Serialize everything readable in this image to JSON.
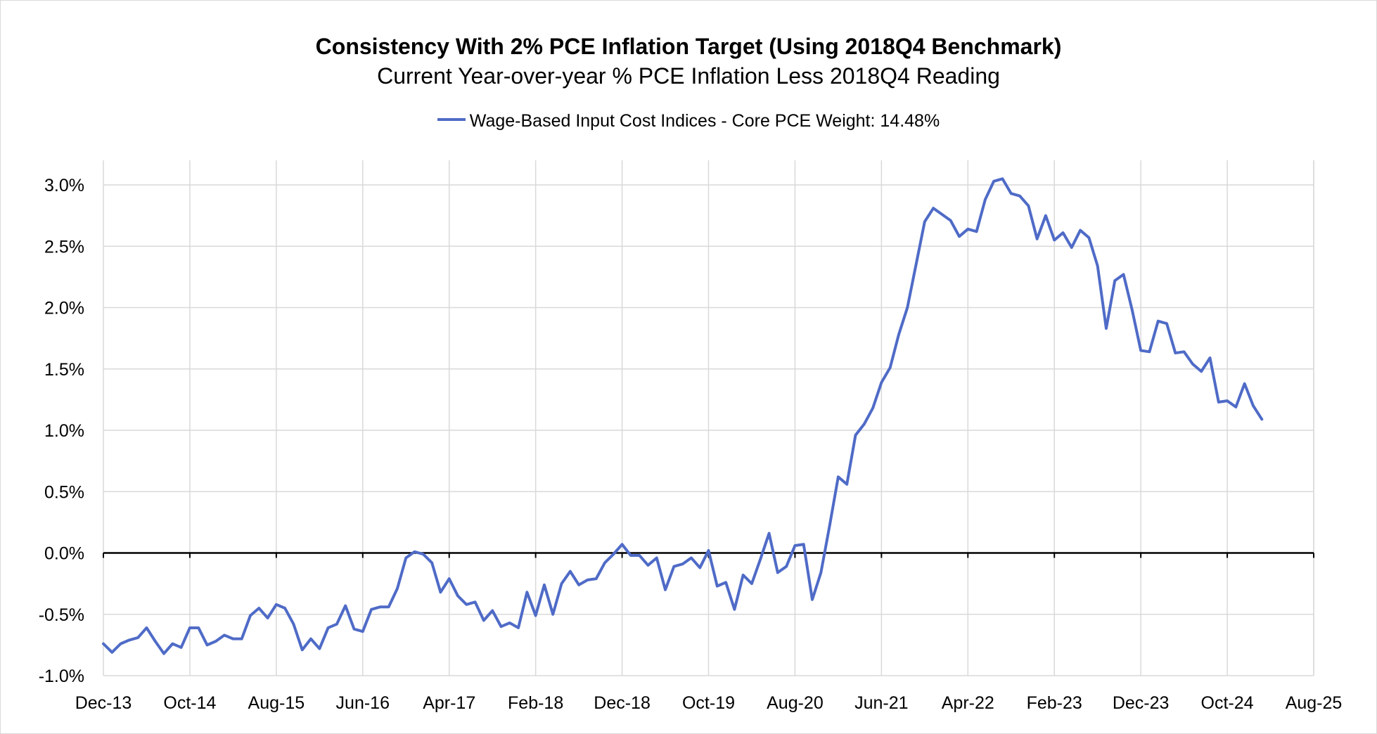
{
  "colors": {
    "series": "#4F6BC7",
    "grid": "#d9d9d9",
    "zero_line": "#000000"
  },
  "chart_data": {
    "type": "line",
    "title": "Consistency With 2% PCE Inflation Target (Using 2018Q4 Benchmark)",
    "subtitle": "Current Year-over-year % PCE Inflation Less 2018Q4 Reading",
    "xlabel": "",
    "ylabel": "",
    "ylim": [
      -1.0,
      3.0
    ],
    "yticks": [
      -1.0,
      -0.5,
      0.0,
      0.5,
      1.0,
      1.5,
      2.0,
      2.5,
      3.0
    ],
    "ytick_labels": [
      "-1.0%",
      "-0.5%",
      "0.0%",
      "0.5%",
      "1.0%",
      "1.5%",
      "2.0%",
      "2.5%",
      "3.0%"
    ],
    "xtick_labels": [
      "Dec-13",
      "Oct-14",
      "Aug-15",
      "Jun-16",
      "Apr-17",
      "Feb-18",
      "Dec-18",
      "Oct-19",
      "Aug-20",
      "Jun-21",
      "Apr-22",
      "Feb-23",
      "Dec-23",
      "Oct-24",
      "Aug-25"
    ],
    "x_months_per_tick": 10,
    "x_range_months": [
      0,
      140
    ],
    "grid": true,
    "legend_position": "top-center",
    "series": [
      {
        "name": "Wage-Based Input Cost Indices - Core PCE Weight: 14.48%",
        "values": [
          -0.74,
          -0.81,
          -0.74,
          -0.71,
          -0.69,
          -0.61,
          -0.72,
          -0.82,
          -0.74,
          -0.77,
          -0.61,
          -0.61,
          -0.75,
          -0.72,
          -0.67,
          -0.7,
          -0.7,
          -0.51,
          -0.45,
          -0.53,
          -0.42,
          -0.45,
          -0.58,
          -0.79,
          -0.7,
          -0.78,
          -0.61,
          -0.58,
          -0.43,
          -0.62,
          -0.64,
          -0.46,
          -0.44,
          -0.44,
          -0.29,
          -0.04,
          0.01,
          -0.01,
          -0.08,
          -0.32,
          -0.21,
          -0.35,
          -0.42,
          -0.4,
          -0.55,
          -0.47,
          -0.6,
          -0.57,
          -0.61,
          -0.32,
          -0.51,
          -0.26,
          -0.5,
          -0.25,
          -0.15,
          -0.26,
          -0.22,
          -0.21,
          -0.08,
          -0.01,
          0.07,
          -0.02,
          -0.02,
          -0.1,
          -0.04,
          -0.3,
          -0.11,
          -0.09,
          -0.04,
          -0.12,
          0.02,
          -0.27,
          -0.24,
          -0.46,
          -0.18,
          -0.25,
          -0.05,
          0.16,
          -0.16,
          -0.11,
          0.06,
          0.07,
          -0.38,
          -0.16,
          0.22,
          0.62,
          0.56,
          0.96,
          1.05,
          1.18,
          1.39,
          1.51,
          1.78,
          2.0,
          2.35,
          2.7,
          2.81,
          2.76,
          2.71,
          2.58,
          2.64,
          2.62,
          2.88,
          3.03,
          3.05,
          2.93,
          2.91,
          2.83,
          2.56,
          2.75,
          2.55,
          2.61,
          2.49,
          2.63,
          2.57,
          2.34,
          1.83,
          2.22,
          2.27,
          1.98,
          1.65,
          1.64,
          1.89,
          1.87,
          1.63,
          1.64,
          1.54,
          1.48,
          1.59,
          1.23,
          1.24,
          1.19,
          1.38,
          1.2,
          1.09
        ]
      }
    ]
  }
}
